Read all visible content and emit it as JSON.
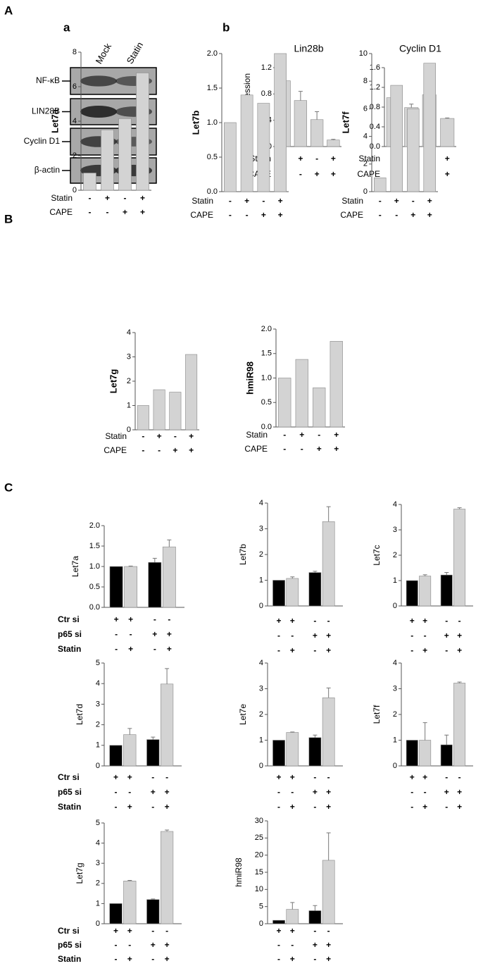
{
  "panels": {
    "A": "A",
    "a": "a",
    "b": "b",
    "B": "B",
    "C": "C"
  },
  "blot": {
    "lanes": [
      "Mock",
      "Statin"
    ],
    "rows": [
      "NF-κB",
      "LIN28B",
      "Cyclin D1",
      "β-actin"
    ]
  },
  "chart_data": [
    {
      "type": "bar",
      "title": "Lin28b",
      "y_label": "mRNA expression",
      "values": [
        1.0,
        0.7,
        0.41,
        0.1
      ],
      "errors": [
        0,
        0.14,
        0.12,
        0.01
      ],
      "color": "#d3d3d3",
      "ylim": [
        0,
        1.2
      ],
      "yticks": [
        {
          "value": 0,
          "label": "0.0"
        },
        {
          "value": 0.4,
          "label": "0.4"
        },
        {
          "value": 0.8,
          "label": "0.8"
        },
        {
          "value": 1.2,
          "label": "1.2"
        }
      ],
      "conditions": [
        {
          "name": "Statin",
          "signs": [
            "-",
            "+",
            "-",
            "+"
          ]
        },
        {
          "name": "CAPE",
          "signs": [
            "-",
            "-",
            "+",
            "+"
          ]
        }
      ]
    },
    {
      "type": "bar",
      "title": "Cyclin D1",
      "values": [
        0.99,
        0.79,
        1.05,
        0.57
      ],
      "errors": [
        0,
        0.07,
        0.08,
        0.01
      ],
      "color": "#d3d3d3",
      "ylim": [
        0,
        1.6
      ],
      "yticks": [
        {
          "value": 0,
          "label": "0.0"
        },
        {
          "value": 0.4,
          "label": "0.4"
        },
        {
          "value": 0.8,
          "label": "0.8"
        },
        {
          "value": 1.2,
          "label": "1.2"
        },
        {
          "value": 1.6,
          "label": "1.6"
        }
      ],
      "conditions": [
        {
          "name": "Statin",
          "signs": [
            "-",
            "+",
            "-",
            "+"
          ]
        },
        {
          "name": "CAPE",
          "signs": [
            "-",
            "-",
            "+",
            "+"
          ]
        }
      ]
    },
    {
      "type": "bar",
      "y_label": "Let7a",
      "values": [
        1.0,
        3.5,
        4.15,
        6.8
      ],
      "color": "#d3d3d3",
      "ylim": [
        0,
        8
      ],
      "yticks": [
        0,
        2,
        4,
        6,
        8
      ],
      "conditions": [
        {
          "name": "Statin",
          "signs": [
            "-",
            "+",
            "-",
            "+"
          ]
        },
        {
          "name": "CAPE",
          "signs": [
            "-",
            "-",
            "+",
            "+"
          ]
        }
      ]
    },
    {
      "type": "bar",
      "y_label": "Let7b",
      "values": [
        1.0,
        1.4,
        1.28,
        2.0
      ],
      "color": "#d3d3d3",
      "ylim": [
        0,
        2
      ],
      "yticks": [
        {
          "value": 0,
          "label": "0.0"
        },
        {
          "value": 0.5,
          "label": "0.5"
        },
        {
          "value": 1,
          "label": "1.0"
        },
        {
          "value": 1.5,
          "label": "1.5"
        },
        {
          "value": 2,
          "label": "2.0"
        }
      ],
      "conditions": [
        {
          "name": "Statin",
          "signs": [
            "-",
            "+",
            "-",
            "+"
          ]
        },
        {
          "name": "CAPE",
          "signs": [
            "-",
            "-",
            "+",
            "+"
          ]
        }
      ]
    },
    {
      "type": "bar",
      "y_label": "Let7f",
      "values": [
        1.0,
        7.7,
        6.0,
        9.3
      ],
      "color": "#d3d3d3",
      "ylim": [
        0,
        10
      ],
      "yticks": [
        0,
        2,
        4,
        6,
        8,
        10
      ],
      "conditions": [
        {
          "name": "Statin",
          "signs": [
            "-",
            "+",
            "-",
            "+"
          ]
        },
        {
          "name": "CAPE",
          "signs": [
            "-",
            "-",
            "+",
            "+"
          ]
        }
      ]
    },
    {
      "type": "bar",
      "y_label": "Let7g",
      "values": [
        1.0,
        1.65,
        1.55,
        3.1
      ],
      "color": "#d3d3d3",
      "ylim": [
        0,
        4
      ],
      "yticks": [
        0,
        1,
        2,
        3,
        4
      ],
      "conditions": [
        {
          "name": "Statin",
          "signs": [
            "-",
            "+",
            "-",
            "+"
          ]
        },
        {
          "name": "CAPE",
          "signs": [
            "-",
            "-",
            "+",
            "+"
          ]
        }
      ]
    },
    {
      "type": "bar",
      "y_label": "hmiR98",
      "values": [
        1.0,
        1.38,
        0.8,
        1.75
      ],
      "color": "#d3d3d3",
      "ylim": [
        0,
        2
      ],
      "yticks": [
        {
          "value": 0,
          "label": "0.0"
        },
        {
          "value": 0.5,
          "label": "0.5"
        },
        {
          "value": 1,
          "label": "1.0"
        },
        {
          "value": 1.5,
          "label": "1.5"
        },
        {
          "value": 2,
          "label": "2.0"
        }
      ],
      "conditions": [
        {
          "name": "Statin",
          "signs": [
            "-",
            "+",
            "-",
            "+"
          ]
        },
        {
          "name": "CAPE",
          "signs": [
            "-",
            "-",
            "+",
            "+"
          ]
        }
      ]
    },
    {
      "type": "bar",
      "y_label": "Let7a",
      "values": [
        1.0,
        1.0,
        1.1,
        1.48
      ],
      "errors": [
        0,
        0.01,
        0.1,
        0.17
      ],
      "colors": [
        "#000000",
        "#d3d3d3",
        "#000000",
        "#d3d3d3"
      ],
      "ylim": [
        0,
        2
      ],
      "yticks": [
        {
          "value": 0,
          "label": "0.0"
        },
        {
          "value": 0.5,
          "label": "0.5"
        },
        {
          "value": 1,
          "label": "1.0"
        },
        {
          "value": 1.5,
          "label": "1.5"
        },
        {
          "value": 2,
          "label": "2.0"
        }
      ],
      "conditions": [
        {
          "name": "Ctr si",
          "signs": [
            "+",
            "+",
            "-",
            "-"
          ]
        },
        {
          "name": "p65 si",
          "signs": [
            "-",
            "-",
            "+",
            "+"
          ]
        },
        {
          "name": "Statin",
          "signs": [
            "-",
            "+",
            "-",
            "+"
          ]
        }
      ]
    },
    {
      "type": "bar",
      "y_label": "Let7b",
      "values": [
        1.0,
        1.07,
        1.3,
        3.28
      ],
      "errors": [
        0,
        0.06,
        0.05,
        0.58
      ],
      "colors": [
        "#000000",
        "#d3d3d3",
        "#000000",
        "#d3d3d3"
      ],
      "ylim": [
        0,
        4
      ],
      "yticks": [
        0,
        1,
        2,
        3,
        4
      ],
      "conditions": [
        {
          "signs": [
            "+",
            "+",
            "-",
            "-"
          ]
        },
        {
          "signs": [
            "-",
            "-",
            "+",
            "+"
          ]
        },
        {
          "signs": [
            "-",
            "+",
            "-",
            "+"
          ]
        }
      ]
    },
    {
      "type": "bar",
      "y_label": "Let7c",
      "values": [
        1.0,
        1.18,
        1.22,
        3.82
      ],
      "errors": [
        0,
        0.05,
        0.1,
        0.05
      ],
      "colors": [
        "#000000",
        "#d3d3d3",
        "#000000",
        "#d3d3d3"
      ],
      "ylim": [
        0,
        4
      ],
      "yticks": [
        0,
        1,
        2,
        3,
        4
      ],
      "conditions": [
        {
          "signs": [
            "+",
            "+",
            "-",
            "-"
          ]
        },
        {
          "signs": [
            "-",
            "-",
            "+",
            "+"
          ]
        },
        {
          "signs": [
            "-",
            "+",
            "-",
            "+"
          ]
        }
      ]
    },
    {
      "type": "bar",
      "y_label": "Let7d",
      "values": [
        1.0,
        1.52,
        1.28,
        3.98
      ],
      "errors": [
        0,
        0.3,
        0.12,
        0.75
      ],
      "colors": [
        "#000000",
        "#d3d3d3",
        "#000000",
        "#d3d3d3"
      ],
      "ylim": [
        0,
        5
      ],
      "yticks": [
        0,
        1,
        2,
        3,
        4,
        5
      ],
      "conditions": [
        {
          "name": "Ctr si",
          "signs": [
            "+",
            "+",
            "-",
            "-"
          ]
        },
        {
          "name": "p65 si",
          "signs": [
            "-",
            "-",
            "+",
            "+"
          ]
        },
        {
          "name": "Statin",
          "signs": [
            "-",
            "+",
            "-",
            "+"
          ]
        }
      ]
    },
    {
      "type": "bar",
      "y_label": "Let7e",
      "values": [
        1.0,
        1.3,
        1.1,
        2.65
      ],
      "errors": [
        0,
        0.02,
        0.1,
        0.38
      ],
      "colors": [
        "#000000",
        "#d3d3d3",
        "#000000",
        "#d3d3d3"
      ],
      "ylim": [
        0,
        4
      ],
      "yticks": [
        0,
        1,
        2,
        3,
        4
      ],
      "conditions": [
        {
          "signs": [
            "+",
            "+",
            "-",
            "-"
          ]
        },
        {
          "signs": [
            "-",
            "-",
            "+",
            "+"
          ]
        },
        {
          "signs": [
            "-",
            "+",
            "-",
            "+"
          ]
        }
      ]
    },
    {
      "type": "bar",
      "y_label": "Let7f",
      "values": [
        1.0,
        1.0,
        0.82,
        3.22
      ],
      "errors": [
        0,
        0.68,
        0.38,
        0.04
      ],
      "colors": [
        "#000000",
        "#d3d3d3",
        "#000000",
        "#d3d3d3"
      ],
      "ylim": [
        0,
        4
      ],
      "yticks": [
        0,
        1,
        2,
        3,
        4
      ],
      "conditions": [
        {
          "signs": [
            "+",
            "+",
            "-",
            "-"
          ]
        },
        {
          "signs": [
            "-",
            "-",
            "+",
            "+"
          ]
        },
        {
          "signs": [
            "-",
            "+",
            "-",
            "+"
          ]
        }
      ]
    },
    {
      "type": "bar",
      "y_label": "Let7g",
      "values": [
        1.0,
        2.12,
        1.2,
        4.58
      ],
      "errors": [
        0,
        0.03,
        0.03,
        0.07
      ],
      "colors": [
        "#000000",
        "#d3d3d3",
        "#000000",
        "#d3d3d3"
      ],
      "ylim": [
        0,
        5
      ],
      "yticks": [
        0,
        1,
        2,
        3,
        4,
        5
      ],
      "conditions": [
        {
          "name": "Ctr si",
          "signs": [
            "+",
            "+",
            "-",
            "-"
          ]
        },
        {
          "name": "p65 si",
          "signs": [
            "-",
            "-",
            "+",
            "+"
          ]
        },
        {
          "name": "Statin",
          "signs": [
            "-",
            "+",
            "-",
            "+"
          ]
        }
      ]
    },
    {
      "type": "bar",
      "y_label": "hmiR98",
      "values": [
        1.0,
        4.2,
        3.8,
        18.5
      ],
      "errors": [
        0,
        2,
        1.5,
        8
      ],
      "colors": [
        "#000000",
        "#d3d3d3",
        "#000000",
        "#d3d3d3"
      ],
      "ylim": [
        0,
        30
      ],
      "yticks": [
        0,
        5,
        10,
        15,
        20,
        25,
        30
      ],
      "conditions": [
        {
          "signs": [
            "+",
            "+",
            "-",
            "-"
          ]
        },
        {
          "signs": [
            "-",
            "-",
            "+",
            "+"
          ]
        },
        {
          "signs": [
            "-",
            "+",
            "-",
            "+"
          ]
        }
      ]
    }
  ]
}
